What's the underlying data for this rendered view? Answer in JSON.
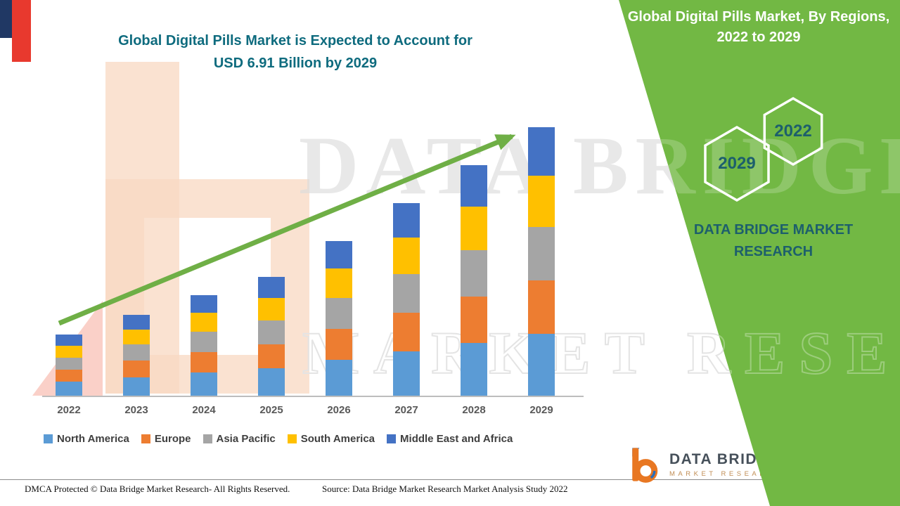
{
  "header": {
    "title_line1": "Global Digital Pills Market is Expected to Account for",
    "title_line2": "USD 6.91 Billion by 2029"
  },
  "side_panel": {
    "title_line1": "Global Digital Pills Market, By Regions,",
    "title_line2": "2022 to 2029",
    "hexagons": [
      "2029",
      "2022"
    ],
    "brand_line1": "DATA BRIDGE MARKET",
    "brand_line2": "RESEARCH",
    "bg_color": "#72b844",
    "accent_text_color": "#1d5f6c"
  },
  "watermark": {
    "line1": "DATA BRIDGE",
    "line2": "MARKET RESEARCH"
  },
  "chart_data": {
    "type": "bar",
    "stacked": true,
    "title": "Global Digital Pills Market is Expected to Account for USD 6.91 Billion by 2029",
    "categories": [
      "2022",
      "2023",
      "2024",
      "2025",
      "2026",
      "2027",
      "2028",
      "2029"
    ],
    "series": [
      {
        "name": "North America",
        "color": "#5B9BD5",
        "values": [
          0.36,
          0.48,
          0.6,
          0.7,
          0.92,
          1.14,
          1.36,
          1.59
        ]
      },
      {
        "name": "Europe",
        "color": "#ED7D31",
        "values": [
          0.31,
          0.42,
          0.52,
          0.62,
          0.8,
          1.0,
          1.2,
          1.38
        ]
      },
      {
        "name": "Asia Pacific",
        "color": "#A5A5A5",
        "values": [
          0.31,
          0.42,
          0.52,
          0.61,
          0.8,
          0.99,
          1.19,
          1.38
        ]
      },
      {
        "name": "South America",
        "color": "#FFC000",
        "values": [
          0.3,
          0.39,
          0.49,
          0.58,
          0.76,
          0.94,
          1.12,
          1.31
        ]
      },
      {
        "name": "Middle East and Africa",
        "color": "#4472C4",
        "values": [
          0.29,
          0.37,
          0.46,
          0.55,
          0.7,
          0.89,
          1.06,
          1.25
        ]
      }
    ],
    "totals_usd_billion": [
      1.57,
      2.08,
      2.59,
      3.06,
      3.98,
      4.96,
      5.93,
      6.91
    ],
    "value_2029_usd_billion": 6.91,
    "xlabel": "",
    "ylabel": "",
    "ylim": [
      0,
      7
    ],
    "grid": false,
    "legend_position": "bottom",
    "trend_arrow": true,
    "trend_arrow_color": "#6faf46"
  },
  "footer": {
    "left": "DMCA Protected © Data Bridge Market Research- All Rights Reserved.",
    "source": "Source: Data Bridge Market Research Market Analysis Study 2022"
  },
  "logo": {
    "title": "DATA BRIDGE",
    "subtitle": "MARKET RESEARCH"
  }
}
